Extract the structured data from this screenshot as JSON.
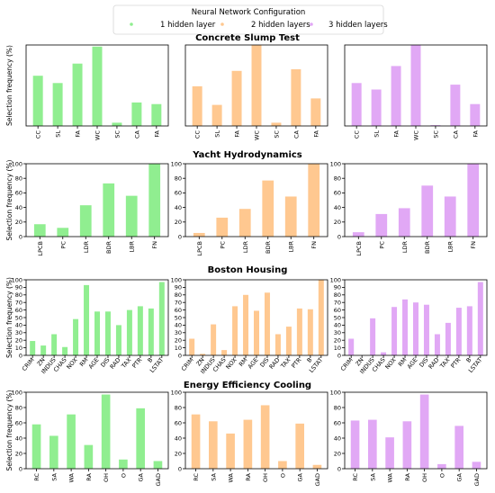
{
  "legend": {
    "title": "Neural Network Configuration",
    "entries": [
      {
        "label": "1 hidden layer",
        "color": "#90ee90"
      },
      {
        "label": "2 hidden layers",
        "color": "#ffc890"
      },
      {
        "label": "3 hidden layers",
        "color": "#e1a8f5"
      }
    ]
  },
  "chart_data": [
    {
      "type": "bar",
      "title": "Concrete Slump Test",
      "ylabel": "Selection frequency (%)",
      "ylim": [
        0,
        100
      ],
      "yticks": [],
      "categories": [
        "CC",
        "SL",
        "FA",
        "WC",
        "SC",
        "CA",
        "FA"
      ],
      "series": [
        {
          "name": "1 hidden layer",
          "values": [
            62,
            53,
            77,
            98,
            4,
            29,
            27
          ]
        },
        {
          "name": "2 hidden layers",
          "values": [
            49,
            26,
            68,
            100,
            4,
            70,
            34
          ]
        },
        {
          "name": "3 hidden layers",
          "values": [
            53,
            45,
            74,
            100,
            1,
            51,
            27
          ]
        }
      ]
    },
    {
      "type": "bar",
      "title": "Yacht Hydrodynamics",
      "ylabel": "Selection frequency (%)",
      "ylim": [
        0,
        100
      ],
      "yticks": [
        "0",
        "20",
        "40",
        "60",
        "80",
        "100"
      ],
      "categories": [
        "LPCB",
        "PC",
        "LDR",
        "BDR",
        "LBR",
        "FN"
      ],
      "series": [
        {
          "name": "1 hidden layer",
          "values": [
            17,
            12,
            43,
            73,
            56,
            100
          ]
        },
        {
          "name": "2 hidden layers",
          "values": [
            5,
            26,
            38,
            77,
            55,
            100
          ]
        },
        {
          "name": "3 hidden layers",
          "values": [
            6,
            31,
            39,
            70,
            55,
            100
          ]
        }
      ]
    },
    {
      "type": "bar",
      "title": "Boston Housing",
      "ylabel": "Selection frequency (%)",
      "ylim": [
        0,
        100
      ],
      "yticks": [
        "0",
        "10",
        "20",
        "30",
        "40",
        "50",
        "60",
        "70",
        "80",
        "90",
        "100"
      ],
      "categories": [
        "CRIM",
        "ZN",
        "INDUS",
        "CHAS",
        "NOX",
        "RM",
        "AGE",
        "DIS",
        "RAD",
        "TAX",
        "PTR",
        "B",
        "LSTAT"
      ],
      "series": [
        {
          "name": "1 hidden layer",
          "values": [
            19,
            13,
            28,
            11,
            48,
            93,
            58,
            58,
            40,
            60,
            65,
            62,
            97
          ]
        },
        {
          "name": "2 hidden layers",
          "values": [
            22,
            2,
            41,
            7,
            65,
            80,
            59,
            83,
            28,
            38,
            62,
            61,
            100
          ]
        },
        {
          "name": "3 hidden layers",
          "values": [
            22,
            0,
            49,
            4,
            64,
            74,
            70,
            67,
            28,
            43,
            63,
            65,
            97
          ]
        }
      ]
    },
    {
      "type": "bar",
      "title": "Energy Efficiency Cooling",
      "ylabel": "Selection frequency (%)",
      "ylim": [
        0,
        100
      ],
      "yticks": [
        "0",
        "20",
        "40",
        "60",
        "80",
        "100"
      ],
      "categories": [
        "RC",
        "SA",
        "WA",
        "RA",
        "OH",
        "O",
        "GA",
        "GAD"
      ],
      "series": [
        {
          "name": "1 hidden layer",
          "values": [
            58,
            43,
            71,
            31,
            97,
            12,
            79,
            10
          ]
        },
        {
          "name": "2 hidden layers",
          "values": [
            71,
            62,
            46,
            64,
            83,
            10,
            59,
            5
          ]
        },
        {
          "name": "3 hidden layers",
          "values": [
            63,
            64,
            41,
            62,
            97,
            6,
            56,
            9
          ]
        }
      ]
    }
  ]
}
